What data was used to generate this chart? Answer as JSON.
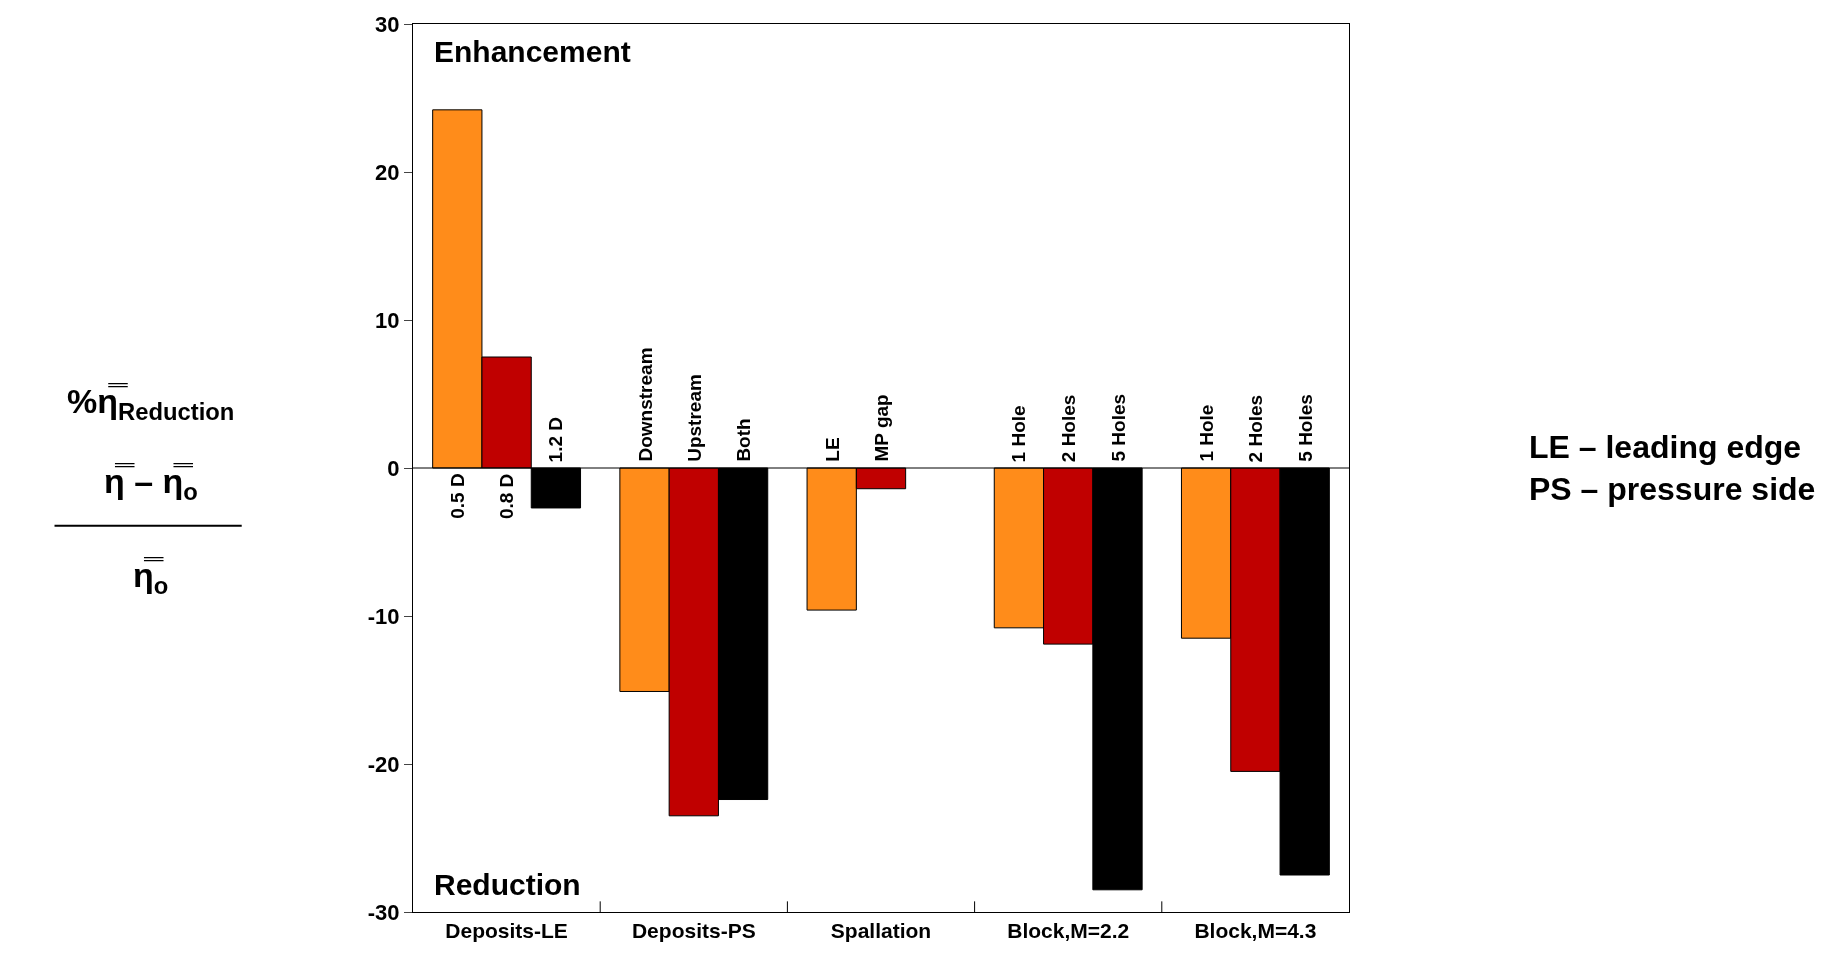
{
  "chart_data": {
    "type": "bar",
    "categories": [
      "Deposits-LE",
      "Deposits-PS",
      "Spallation",
      "Block,M=2.2",
      "Block,M=4.3"
    ],
    "series": [
      {
        "color": "#ff8c1a",
        "values": [
          24.2,
          -15.1,
          -9.6,
          -10.8,
          -11.5
        ]
      },
      {
        "color": "#c00000",
        "values": [
          7.5,
          -23.5,
          -1.4,
          -11.9,
          -20.5
        ]
      },
      {
        "color": "#000000",
        "values": [
          -2.7,
          -22.4,
          null,
          -28.5,
          -27.5
        ]
      }
    ],
    "ylabel": "%η̿$_{Reduction}$\nη̿ – η̿$_{o}$\nη̿$_{o}$",
    "ylim": [
      -30,
      30
    ],
    "yticks": [
      -30,
      -20,
      -10,
      0,
      10,
      20,
      30
    ],
    "ref_lines": [
      {
        "axis": "y",
        "value": 0,
        "color": "#000000"
      }
    ],
    "annotations": [
      "Enhancement",
      "Reduction",
      "LE – leading edge\nPS – pressure side",
      "0.5 D",
      "0.8 D",
      "1.2 D",
      "Downstream",
      "Upstream",
      "Both",
      "LE",
      "MP gap",
      "1 Hole",
      "2 Holes",
      "5 Holes",
      "1 Hole",
      "2 Holes",
      "5 Holes"
    ]
  }
}
